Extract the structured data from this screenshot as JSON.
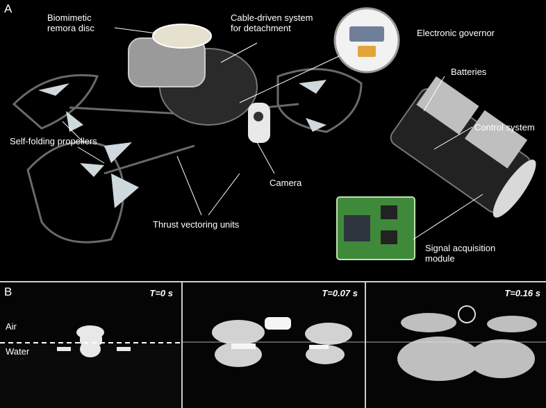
{
  "panel_a": {
    "letter": "A",
    "labels": {
      "remora_disc_line1": "Biomimetic",
      "remora_disc_line2": "remora disc",
      "cable_line1": "Cable-driven system",
      "cable_line2": "for detachment",
      "governor": "Electronic governor",
      "batteries": "Batteries",
      "control": "Control system",
      "propellers": "Self-folding propellers",
      "camera": "Camera",
      "thrust": "Thrust vectoring units",
      "signal_line1": "Signal acquisition",
      "signal_line2": "module"
    }
  },
  "panel_b": {
    "letter": "B",
    "frames": [
      {
        "time": "T=0 s"
      },
      {
        "time": "T=0.07 s"
      },
      {
        "time": "T=0.16 s"
      }
    ],
    "air_label": "Air",
    "water_label": "Water"
  }
}
